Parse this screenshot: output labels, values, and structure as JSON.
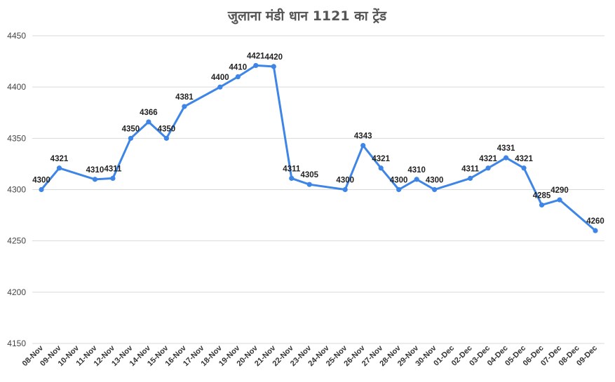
{
  "chart_data": {
    "type": "line",
    "title": "जुलाना मंडी धान 1121 का ट्रेंड",
    "xlabel": "",
    "ylabel": "",
    "ylim": [
      4150,
      4450
    ],
    "yticks": [
      4150,
      4200,
      4250,
      4300,
      4350,
      4400,
      4450
    ],
    "grid": true,
    "legend": "none",
    "line_color": "#3d85e6",
    "categories": [
      "08-Nov",
      "09-Nov",
      "10-Nov",
      "11-Nov",
      "12-Nov",
      "13-Nov",
      "14-Nov",
      "15-Nov",
      "16-Nov",
      "17-Nov",
      "18-Nov",
      "19-Nov",
      "20-Nov",
      "21-Nov",
      "22-Nov",
      "23-Nov",
      "24-Nov",
      "25-Nov",
      "26-Nov",
      "27-Nov",
      "28-Nov",
      "29-Nov",
      "30-Nov",
      "01-Dec",
      "02-Dec",
      "03-Dec",
      "04-Dec",
      "05-Dec",
      "06-Dec",
      "07-Dec",
      "08-Dec",
      "09-Dec"
    ],
    "series": [
      {
        "values": [
          4300,
          4321,
          null,
          4310,
          4311,
          4350,
          4366,
          4350,
          4381,
          null,
          4400,
          4410,
          4421,
          4420,
          4311,
          4305,
          null,
          4300,
          4343,
          4321,
          4300,
          4310,
          4300,
          null,
          4311,
          4321,
          4331,
          4321,
          4285,
          4290,
          null,
          4260
        ]
      }
    ]
  }
}
